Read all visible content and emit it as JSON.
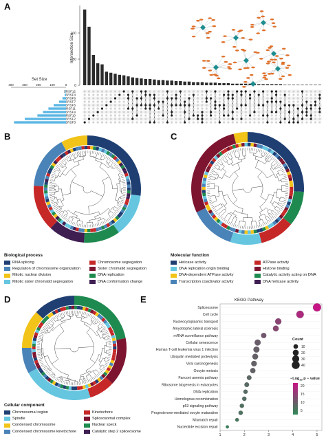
{
  "panels": {
    "a": "A",
    "b": "B",
    "c": "C",
    "d": "D",
    "e": "E"
  },
  "chart_data": [
    {
      "type": "bar",
      "panel": "A",
      "ylabel": "Intersection Size",
      "yticks": [
        "0",
        "50",
        "100"
      ],
      "ylim": [
        0,
        150
      ],
      "values": [
        145,
        112,
        58,
        42,
        40,
        26,
        24,
        22,
        20,
        19,
        17,
        15,
        14,
        13,
        12,
        12,
        11,
        10,
        10,
        9,
        9,
        8,
        8,
        7,
        7,
        6,
        6,
        6,
        5,
        5,
        5,
        4,
        4,
        4,
        3,
        3,
        3,
        3,
        3,
        2,
        2,
        2,
        2,
        2,
        2,
        2,
        1,
        1,
        1,
        1,
        1,
        1,
        1,
        1,
        1
      ],
      "set_size_label": "Set Size",
      "set_size_ticks": [
        "400",
        "300",
        "200",
        "100",
        "0"
      ],
      "sets": [
        {
          "name": "SRSF12",
          "size": 4
        },
        {
          "name": "SRSF4",
          "size": 10
        },
        {
          "name": "SRSF6",
          "size": 26
        },
        {
          "name": "SRSF7",
          "size": 50
        },
        {
          "name": "SRSF5",
          "size": 90
        },
        {
          "name": "SRSF11",
          "size": 128
        },
        {
          "name": "SRSF9",
          "size": 168
        },
        {
          "name": "SRSF10",
          "size": 208
        },
        {
          "name": "SRSF2",
          "size": 300
        },
        {
          "name": "SRSF3",
          "size": 378
        }
      ]
    },
    {
      "type": "scatter",
      "panel": "E",
      "title": "KEGG Pathway",
      "categories": [
        "Spliceosome",
        "Cell cycle",
        "Nucleocytoplasmic transport",
        "Amyotrophic lateral sclerosis",
        "mRNA surveillance pathway",
        "Cellular senescence",
        "Human T-cell leukemia virus 1 infection",
        "Ubiquitin mediated proteolysis",
        "Viral carcinogenesis",
        "Oocyte meiosis",
        "Fanconi anemia pathway",
        "Ribosome biogenesis in eukaryotes",
        "DNA replication",
        "Homologous recombination",
        "p53 signaling pathway",
        "Progesterone-mediated oocyte maturation",
        "Mismatch repair",
        "Nucleotide excision repair"
      ],
      "x": [
        5.0,
        4.3,
        3.4,
        3.3,
        2.8,
        2.55,
        2.5,
        2.45,
        2.4,
        2.35,
        2.2,
        2.1,
        2.05,
        2.0,
        1.9,
        1.85,
        1.7,
        1.3
      ],
      "count": [
        42,
        34,
        22,
        18,
        14,
        20,
        20,
        18,
        16,
        14,
        10,
        10,
        8,
        8,
        8,
        8,
        5,
        3
      ],
      "xticks": [
        "1",
        "2",
        "3",
        "4",
        "5"
      ],
      "xlim": [
        1,
        5.2
      ],
      "legend_count_title": "Count",
      "legend_count_values": [
        "10",
        "20",
        "30",
        "40"
      ],
      "legend_color_title": "−Log",
      "legend_color_sub": "10",
      "legend_color_tail": "p − value",
      "legend_color_ticks": [
        "20",
        "15",
        "10",
        "5"
      ]
    }
  ],
  "legend_b": {
    "title": "Biological process",
    "items": [
      {
        "label": "RNA splicing",
        "color": "#1f3f73"
      },
      {
        "label": "Chromosome segregation",
        "color": "#c62828"
      },
      {
        "label": "Regulation of chromosome organization",
        "color": "#4a83b8"
      },
      {
        "label": "Sister chromatid segregation",
        "color": "#7d1530"
      },
      {
        "label": "Mitotic nuclear division",
        "color": "#f2c318"
      },
      {
        "label": "DNA replication",
        "color": "#1f8a4f"
      },
      {
        "label": "Mitotic sister chromatid segregation",
        "color": "#66c6e0"
      },
      {
        "label": "DNA conformation change",
        "color": "#3f1e52"
      }
    ]
  },
  "legend_c": {
    "title": "Molecular function",
    "items": [
      {
        "label": "Helicase activity",
        "color": "#1f3f73"
      },
      {
        "label": "ATPase activity",
        "color": "#c62828"
      },
      {
        "label": "DNA replication origin binding",
        "color": "#66c6e0"
      },
      {
        "label": "Histone binding",
        "color": "#7d1530"
      },
      {
        "label": "DNA-dependent ATPase activity",
        "color": "#f2c318"
      },
      {
        "label": "Catalytic activity acting on DNA",
        "color": "#1f8a4f"
      },
      {
        "label": "Transcription coactivator activity",
        "color": "#4a83b8"
      },
      {
        "label": "DNA helicase activity",
        "color": "#3f1e52"
      }
    ]
  },
  "legend_d": {
    "title": "Cellular component",
    "items": [
      {
        "label": "Chromosomal region",
        "color": "#1f3f73"
      },
      {
        "label": "Kinetochore",
        "color": "#c62828"
      },
      {
        "label": "Spindle",
        "color": "#66c6e0"
      },
      {
        "label": "Spliceosomal complex",
        "color": "#7d1530"
      },
      {
        "label": "Condensed chromosome",
        "color": "#f2c318"
      },
      {
        "label": "Nuclear speck",
        "color": "#1f8a4f"
      },
      {
        "label": "Condensed chromosome kinetochore",
        "color": "#4a83b8"
      },
      {
        "label": "Catalytic step 2 spliceosome",
        "color": "#3f1e52"
      }
    ]
  },
  "ring_b": [
    {
      "color": "#1f3f73",
      "frac": 0.27
    },
    {
      "color": "#66c6e0",
      "frac": 0.13
    },
    {
      "color": "#1f8a4f",
      "frac": 0.11
    },
    {
      "color": "#3f1e52",
      "frac": 0.11
    },
    {
      "color": "#c62828",
      "frac": 0.14
    },
    {
      "color": "#4a83b8",
      "frac": 0.16
    },
    {
      "color": "#f2c318",
      "frac": 0.08
    }
  ],
  "ring_c": [
    {
      "color": "#1f3f73",
      "frac": 0.26
    },
    {
      "color": "#1f8a4f",
      "frac": 0.1
    },
    {
      "color": "#c62828",
      "frac": 0.1
    },
    {
      "color": "#66c6e0",
      "frac": 0.09
    },
    {
      "color": "#4a83b8",
      "frac": 0.13
    },
    {
      "color": "#7d1530",
      "frac": 0.28
    },
    {
      "color": "#f2c318",
      "frac": 0.04
    }
  ],
  "ring_d": [
    {
      "color": "#1f8a4f",
      "frac": 0.22
    },
    {
      "color": "#7d1530",
      "frac": 0.15
    },
    {
      "color": "#c62828",
      "frac": 0.08
    },
    {
      "color": "#66c6e0",
      "frac": 0.22
    },
    {
      "color": "#4a83b8",
      "frac": 0.08
    },
    {
      "color": "#f2c318",
      "frac": 0.12
    },
    {
      "color": "#1f3f73",
      "frac": 0.13
    }
  ],
  "colors": {
    "bar": "#2b2b2b",
    "setbar": "#5cb6e4",
    "dot_on": "#222222",
    "dot_off": "#d4d4d4",
    "network_node": "#1c8d8f",
    "network_gene": "#e0712b"
  }
}
